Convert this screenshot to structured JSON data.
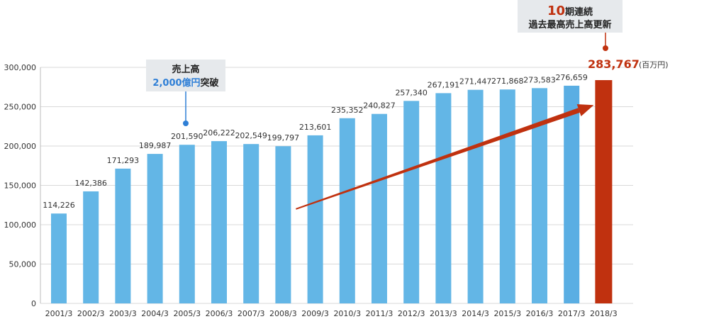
{
  "chart_data": {
    "type": "bar",
    "categories": [
      "2001/3",
      "2002/3",
      "2003/3",
      "2004/3",
      "2005/3",
      "2006/3",
      "2007/3",
      "2008/3",
      "2009/3",
      "2010/3",
      "2011/3",
      "2012/3",
      "2013/3",
      "2014/3",
      "2015/3",
      "2016/3",
      "2017/3",
      "2018/3"
    ],
    "values": [
      114226,
      142386,
      171293,
      189987,
      201590,
      206222,
      202549,
      199797,
      213601,
      235352,
      240827,
      257340,
      267191,
      271447,
      271868,
      273583,
      276659,
      283767
    ],
    "value_labels": [
      "114,226",
      "142,386",
      "171,293",
      "189,987",
      "201,590",
      "206,222",
      "202,549",
      "199,797",
      "213,601",
      "235,352",
      "240,827",
      "257,340",
      "267,191",
      "271,447",
      "271,868",
      "273,583",
      "276,659",
      "283,767"
    ],
    "yticks": [
      0,
      50000,
      100000,
      150000,
      200000,
      250000,
      300000
    ],
    "ytick_labels": [
      "0",
      "50,000",
      "100,000",
      "150,000",
      "200,000",
      "250,000",
      "300,000"
    ],
    "ylim": [
      0,
      300000
    ],
    "unit": "(百万円)",
    "grid": true,
    "colors": {
      "bar": "#63b6e6",
      "bar_2017": "#5aaee3",
      "highlight": "#c0310f",
      "grid": "#d9d9d9",
      "annotation_blue": "#2f7fd6"
    },
    "annotations": [
      {
        "category": "2005/3",
        "line1": "売上高",
        "line2_value": "2,000億円",
        "line2_suffix": "突破"
      },
      {
        "category": "2018/3",
        "line1_number": "10",
        "line1_suffix": "期連続",
        "line2": "過去最高売上高更新"
      }
    ],
    "trend_arrow": {
      "from_category": "2008/3",
      "from_value": 120000,
      "to_category": "2018/3",
      "to_value": 252000,
      "color": "#c0310f"
    }
  }
}
